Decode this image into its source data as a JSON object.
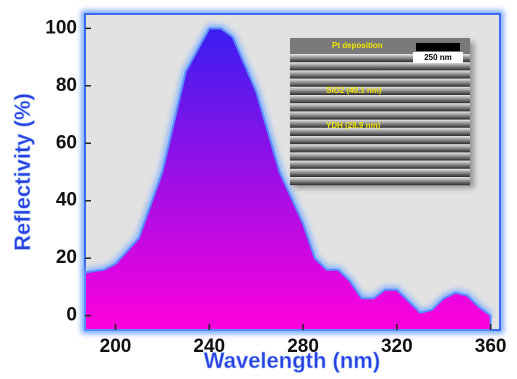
{
  "chart_data": {
    "type": "area",
    "x_label": "Wavelength (nm)",
    "y_label": "Reflectivity (%)",
    "x": [
      187,
      195,
      200,
      210,
      220,
      230,
      240,
      245,
      250,
      260,
      270,
      280,
      285,
      290,
      295,
      300,
      305,
      310,
      315,
      320,
      325,
      330,
      335,
      340,
      345,
      350,
      355,
      360
    ],
    "values": [
      15,
      16,
      18,
      27,
      50,
      85,
      100,
      100,
      97,
      78,
      50,
      32,
      20,
      16,
      16,
      12,
      6,
      6,
      9,
      9,
      5,
      1,
      2,
      6,
      8,
      7,
      3,
      0
    ],
    "colors": [
      "#3a1ef0",
      "#ff00dc"
    ],
    "xlim": [
      187,
      364
    ],
    "ylim": [
      -5,
      105
    ],
    "xticks": [
      200,
      240,
      280,
      320,
      360
    ],
    "yticks": [
      0,
      20,
      40,
      60,
      80,
      100
    ],
    "inset": {
      "title": "Pt deposition",
      "scale_bar": "250 nm",
      "labels": [
        "SiO2 (40.1 nm)",
        "YDH (28.9 nm)"
      ]
    }
  }
}
